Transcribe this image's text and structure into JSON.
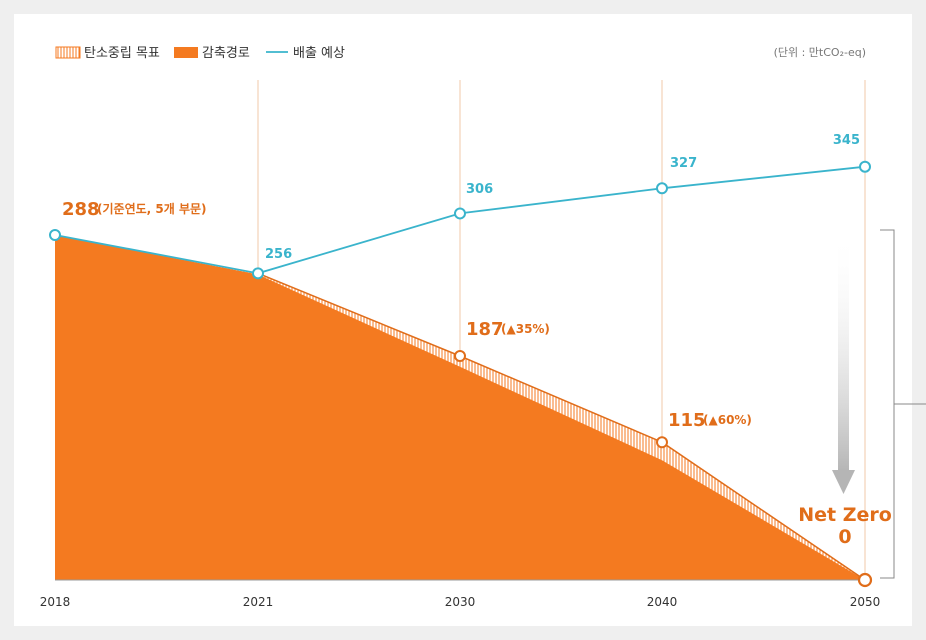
{
  "chart_data": {
    "type": "area",
    "title": "",
    "unit": "(단위 : 만tCO₂-eq)",
    "x": [
      "2018",
      "2021",
      "2030",
      "2040",
      "2050"
    ],
    "ylim": [
      0,
      400
    ],
    "series": [
      {
        "name": "탄소중립 목표",
        "style": "hatched",
        "values": [
          288,
          256,
          187,
          115,
          0
        ]
      },
      {
        "name": "감축경로",
        "style": "area",
        "values": [
          288,
          255,
          178,
          100,
          0
        ]
      },
      {
        "name": "배출 예상",
        "style": "line",
        "values": [
          288,
          256,
          306,
          327,
          345
        ]
      }
    ],
    "labels": {
      "baseline_value": "288",
      "baseline_note": "(기준연도, 5개 부문)",
      "forecast_2021": "256",
      "forecast_2030": "306",
      "forecast_2040": "327",
      "forecast_2050": "345",
      "target_2030": "187",
      "target_2030_note": "(▲35%)",
      "target_2040": "115",
      "target_2040_note": "(▲60%)",
      "netzero_title": "Net Zero",
      "netzero_value": "0"
    },
    "colors": {
      "orange": "#f47a20",
      "orange_dark": "#e06d1a",
      "teal": "#3ab4cc",
      "gridline": "#f0c9a8",
      "arrow": "#b5b5b5",
      "background": "#efefef",
      "plot_bg": "#ffffff"
    }
  }
}
